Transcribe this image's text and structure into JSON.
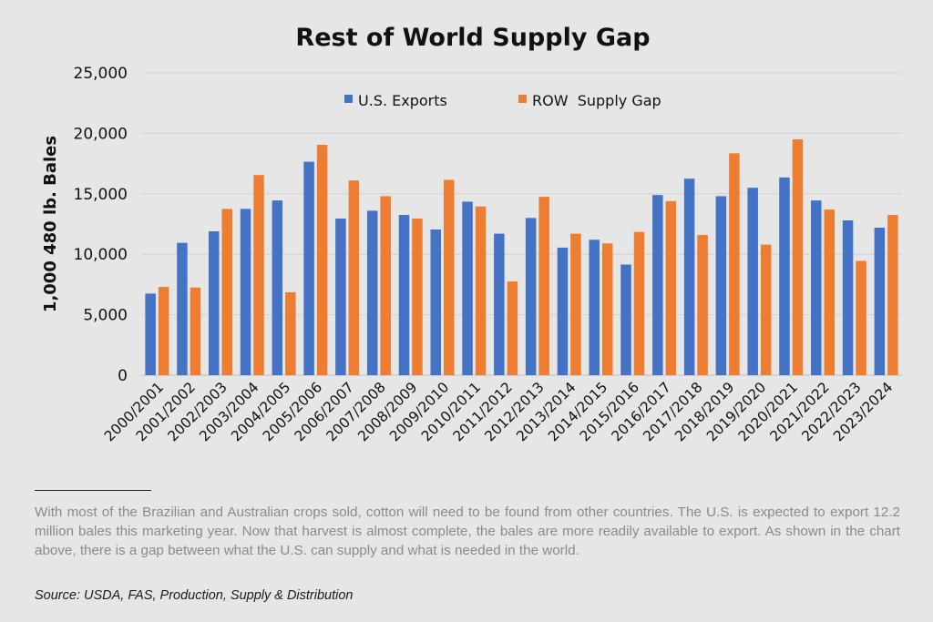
{
  "chart_data": {
    "type": "bar",
    "title": "Rest of World Supply Gap",
    "ylabel": "1,000 480 lb. Bales",
    "xlabel": "",
    "ylim": [
      0,
      25000
    ],
    "yticks": [
      0,
      5000,
      10000,
      15000,
      20000,
      25000
    ],
    "ytick_labels": [
      "0",
      "5,000",
      "10,000",
      "15,000",
      "20,000",
      "25,000"
    ],
    "legend_position": "top-center",
    "categories": [
      "2000/2001",
      "2001/2002",
      "2002/2003",
      "2003/2004",
      "2004/2005",
      "2005/2006",
      "2006/2007",
      "2007/2008",
      "2008/2009",
      "2009/2010",
      "2010/2011",
      "2011/2012",
      "2012/2013",
      "2013/2014",
      "2014/2015",
      "2015/2016",
      "2016/2017",
      "2017/2018",
      "2018/2019",
      "2019/2020",
      "2020/2021",
      "2021/2022",
      "2022/2023",
      "2023/2024"
    ],
    "series": [
      {
        "name": "U.S. Exports",
        "color": "#4472c4",
        "values": [
          6750,
          10950,
          11900,
          13750,
          14450,
          17650,
          12950,
          13600,
          13250,
          12050,
          14350,
          11700,
          13000,
          10550,
          11200,
          9150,
          14900,
          16250,
          14800,
          15500,
          16350,
          14450,
          12800,
          12200
        ]
      },
      {
        "name": "ROW  Supply Gap",
        "color": "#ed7d31",
        "values": [
          7300,
          7250,
          13750,
          16550,
          6850,
          19050,
          16100,
          14800,
          12950,
          16150,
          13950,
          7750,
          14750,
          11700,
          10900,
          11850,
          14400,
          11600,
          18350,
          10800,
          19500,
          13700,
          9450,
          13250
        ]
      }
    ]
  },
  "footer": {
    "caption": "With most of the Brazilian and Australian crops sold, cotton will need to be found from other countries. The U.S. is expected to export 12.2 million bales this marketing year. Now that harvest is almost complete, the bales are more readily available to export. As shown in the chart above, there is a gap between what the U.S. can supply and what is needed in the world.",
    "source": "Source: USDA, FAS, Production, Supply & Distribution"
  }
}
